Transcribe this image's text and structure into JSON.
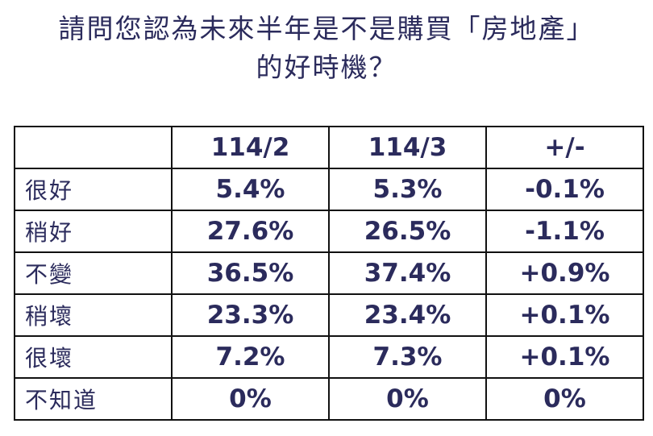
{
  "title": {
    "line1": "請問您認為未來半年是不是購買「房地產」",
    "line2": "的好時機？"
  },
  "table": {
    "headers": [
      "",
      "114/2",
      "114/3",
      "+/-"
    ],
    "rows": [
      {
        "label": "很好",
        "v1": "5.4%",
        "v2": "5.3%",
        "diff": "-0.1%"
      },
      {
        "label": "稍好",
        "v1": "27.6%",
        "v2": "26.5%",
        "diff": "-1.1%"
      },
      {
        "label": "不變",
        "v1": "36.5%",
        "v2": "37.4%",
        "diff": "+0.9%"
      },
      {
        "label": "稍壞",
        "v1": "23.3%",
        "v2": "23.4%",
        "diff": "+0.1%"
      },
      {
        "label": "很壞",
        "v1": "7.2%",
        "v2": "7.3%",
        "diff": "+0.1%"
      },
      {
        "label": "不知道",
        "v1": "0%",
        "v2": "0%",
        "diff": "0%"
      }
    ]
  },
  "colors": {
    "text": "#2b2b5c",
    "border": "#111111"
  }
}
